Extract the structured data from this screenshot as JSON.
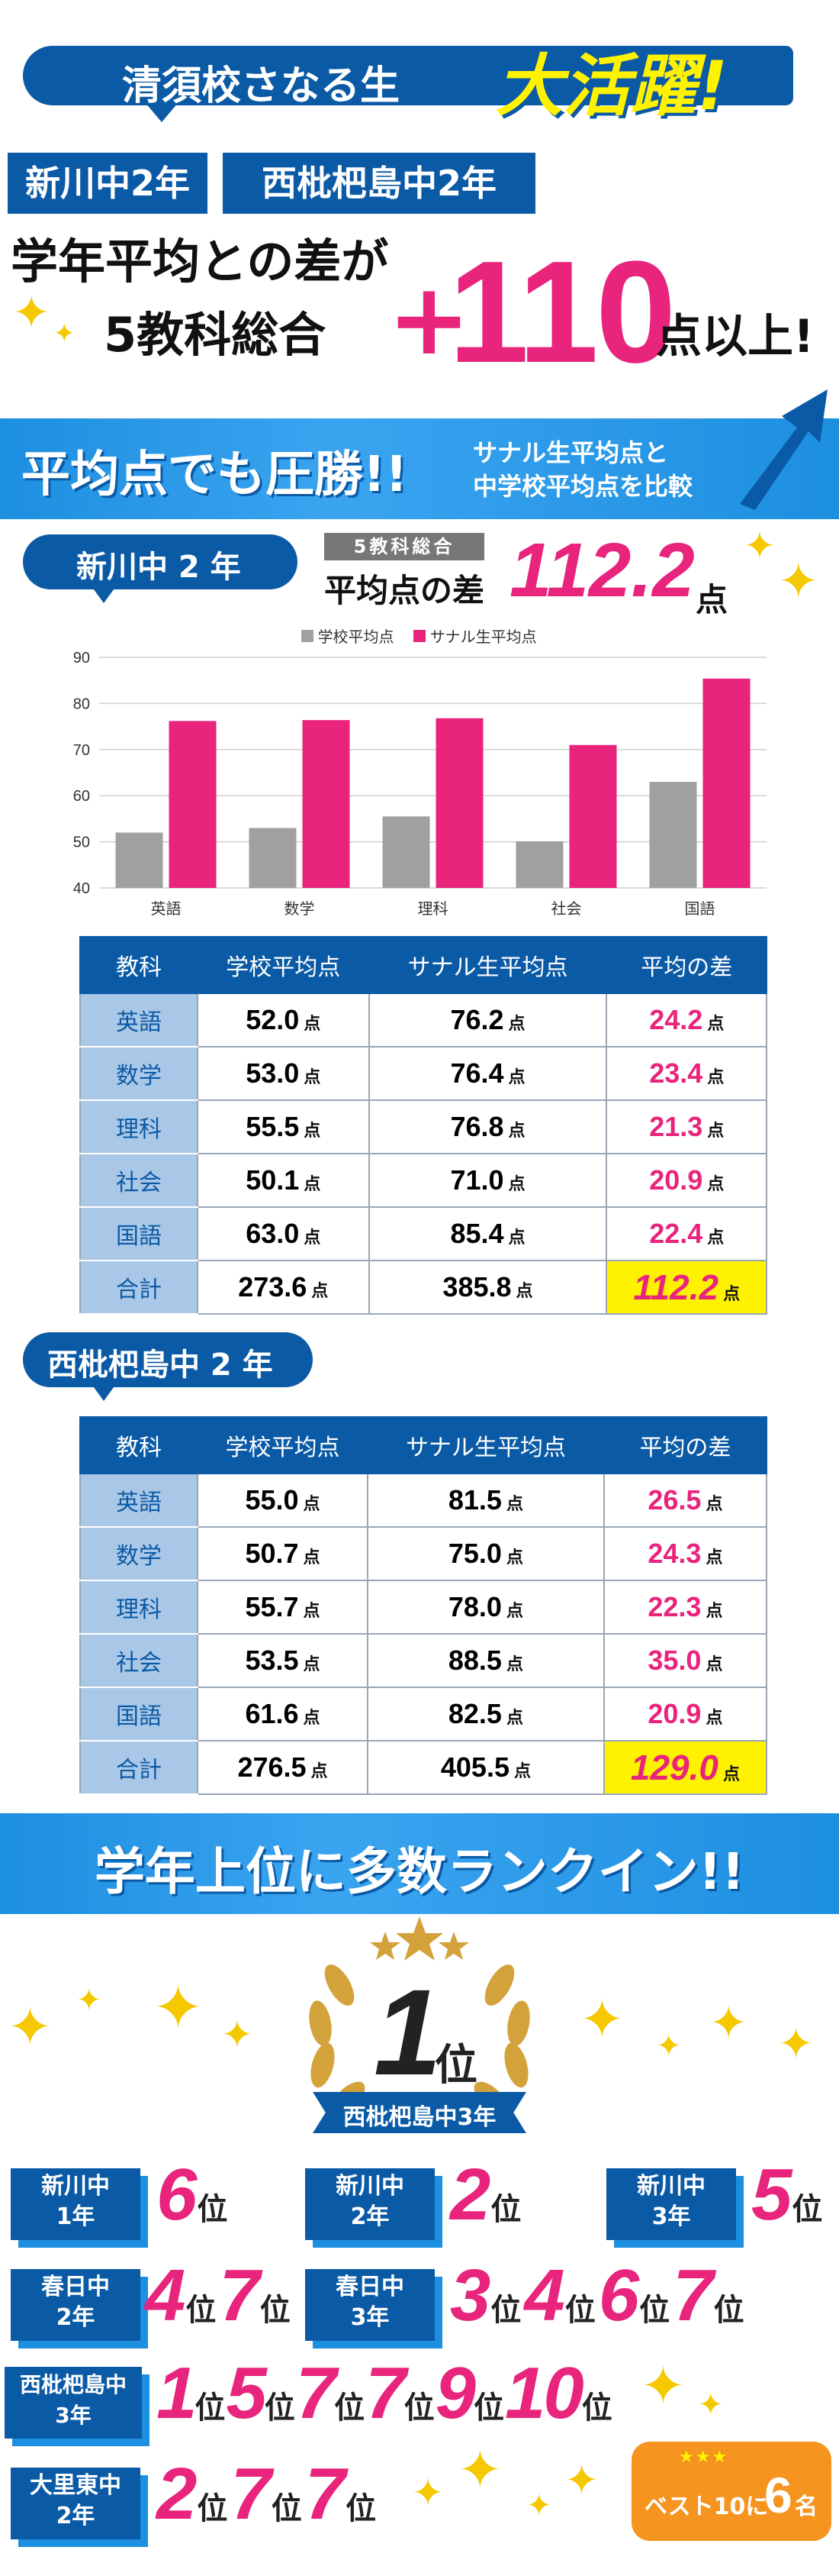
{
  "header": {
    "school_line": "清須校さなる生",
    "highlight": "大活躍!",
    "tags": [
      "新川中2年",
      "西枇杷島中2年"
    ],
    "line1": "学年平均との差が",
    "line2": "5教科総合",
    "plus": "+",
    "number": "110",
    "suffix": "点以上!"
  },
  "section1": {
    "title": "平均点でも圧勝!!",
    "note_line1": "サナル生平均点と",
    "note_line2": "中学校平均点を比較"
  },
  "school1": {
    "label": "新川中 2 年",
    "avg_tag": "5教科総合",
    "avg_label": "平均点の差",
    "avg_value": "112.2",
    "avg_unit": "点"
  },
  "chart_data": {
    "type": "bar",
    "categories": [
      "英語",
      "数学",
      "理科",
      "社会",
      "国語"
    ],
    "series": [
      {
        "name": "学校平均点",
        "values": [
          52.0,
          53.0,
          55.5,
          50.1,
          63.0
        ],
        "color": "#a0a0a0"
      },
      {
        "name": "サナル生平均点",
        "values": [
          76.2,
          76.4,
          76.8,
          71.0,
          85.4
        ],
        "color": "#e8247c"
      }
    ],
    "ylim": [
      40,
      90
    ],
    "yticks": [
      "40",
      "50",
      "60",
      "70",
      "80",
      "90"
    ],
    "legend": "top",
    "grid": true
  },
  "table_headers": [
    "教科",
    "学校平均点",
    "サナル生平均点",
    "平均の差"
  ],
  "unit": "点",
  "table1": [
    {
      "subject": "英語",
      "school": "52.0",
      "sanaru": "76.2",
      "diff": "24.2"
    },
    {
      "subject": "数学",
      "school": "53.0",
      "sanaru": "76.4",
      "diff": "23.4"
    },
    {
      "subject": "理科",
      "school": "55.5",
      "sanaru": "76.8",
      "diff": "21.3"
    },
    {
      "subject": "社会",
      "school": "50.1",
      "sanaru": "71.0",
      "diff": "20.9"
    },
    {
      "subject": "国語",
      "school": "63.0",
      "sanaru": "85.4",
      "diff": "22.4"
    },
    {
      "subject": "合計",
      "school": "273.6",
      "sanaru": "385.8",
      "diff": "112.2"
    }
  ],
  "school2": {
    "label": "西枇杷島中 2 年"
  },
  "table2": [
    {
      "subject": "英語",
      "school": "55.0",
      "sanaru": "81.5",
      "diff": "26.5"
    },
    {
      "subject": "数学",
      "school": "50.7",
      "sanaru": "75.0",
      "diff": "24.3"
    },
    {
      "subject": "理科",
      "school": "55.7",
      "sanaru": "78.0",
      "diff": "22.3"
    },
    {
      "subject": "社会",
      "school": "53.5",
      "sanaru": "88.5",
      "diff": "35.0"
    },
    {
      "subject": "国語",
      "school": "61.6",
      "sanaru": "82.5",
      "diff": "20.9"
    },
    {
      "subject": "合計",
      "school": "276.5",
      "sanaru": "405.5",
      "diff": "129.0"
    }
  ],
  "section2": {
    "title": "学年上位に多数ランクイン!!"
  },
  "top": {
    "rank": "1",
    "suffix": "位",
    "school": "西枇杷島中3年"
  },
  "rank_suffix": "位",
  "rankings": {
    "shinkawa1": {
      "school": "新川中",
      "grade": "1年",
      "ranks": [
        "6"
      ]
    },
    "shinkawa2": {
      "school": "新川中",
      "grade": "2年",
      "ranks": [
        "2"
      ]
    },
    "shinkawa3": {
      "school": "新川中",
      "grade": "3年",
      "ranks": [
        "5"
      ]
    },
    "kasuga2": {
      "school": "春日中",
      "grade": "2年",
      "ranks": [
        "4",
        "7"
      ]
    },
    "kasuga3": {
      "school": "春日中",
      "grade": "3年",
      "ranks": [
        "3",
        "4",
        "6",
        "7"
      ]
    },
    "nishibiwa3": {
      "school": "西枇杷島中",
      "grade": "3年",
      "ranks": [
        "1",
        "5",
        "7",
        "7",
        "9",
        "10"
      ]
    },
    "osato2": {
      "school": "大里東中",
      "grade": "2年",
      "ranks": [
        "2",
        "7",
        "7"
      ]
    }
  },
  "badge": {
    "text": "ベスト10に",
    "count": "6",
    "unit": "名"
  }
}
